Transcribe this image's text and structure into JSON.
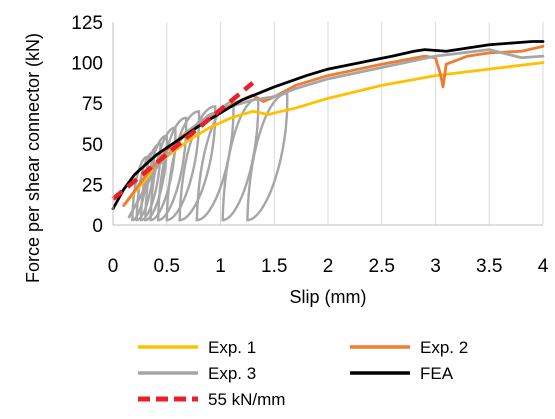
{
  "chart_data": {
    "type": "line",
    "title": "",
    "xlabel": "Slip (mm)",
    "ylabel": "Force per shear connector (kN)",
    "xlim": [
      0,
      4
    ],
    "ylim": [
      0,
      125
    ],
    "xticks": [
      0,
      0.5,
      1,
      1.5,
      2,
      2.5,
      3,
      3.5,
      4
    ],
    "xtick_labels": [
      "0",
      "0.5",
      "1",
      "1.5",
      "2",
      "2.5",
      "3",
      "3.5",
      "4"
    ],
    "yticks": [
      0,
      25,
      50,
      75,
      100,
      125
    ],
    "ytick_labels": [
      "0",
      "25",
      "50",
      "75",
      "100",
      "125"
    ],
    "grid": "vertical",
    "legend_position": "bottom",
    "series": [
      {
        "name": "Exp. 1",
        "color": "#FFC000",
        "dash": false,
        "x": [
          0.1,
          0.3,
          0.5,
          0.7,
          0.9,
          1.1,
          1.3,
          1.45,
          1.5,
          1.7,
          2.0,
          2.5,
          3.0,
          3.5,
          4.0
        ],
        "y": [
          12,
          28,
          42,
          52,
          60,
          66,
          70,
          68,
          69,
          72,
          78,
          86,
          92,
          96,
          100
        ]
      },
      {
        "name": "Exp. 2",
        "color": "#ED7D31",
        "dash": false,
        "x": [
          0.1,
          0.3,
          0.5,
          0.7,
          0.9,
          1.1,
          1.3,
          1.4,
          1.5,
          1.7,
          2.0,
          2.5,
          2.9,
          3.0,
          3.05,
          3.07,
          3.1,
          3.3,
          3.5,
          3.8,
          4.0
        ],
        "y": [
          12,
          30,
          46,
          58,
          67,
          74,
          80,
          76,
          79,
          86,
          92,
          99,
          104,
          103,
          92,
          85,
          99,
          104,
          106,
          107,
          110
        ]
      },
      {
        "name": "Exp. 3",
        "color": "#A6A6A6",
        "dash": false,
        "x": [
          0.15,
          0.4,
          0.7,
          0.9,
          1.1,
          1.3,
          1.5,
          1.7,
          2.0,
          2.5,
          3.0,
          3.5,
          3.8,
          4.0
        ],
        "y": [
          5,
          35,
          58,
          68,
          73,
          77,
          79,
          84,
          90,
          97,
          104,
          108,
          103,
          104
        ]
      },
      {
        "name": "FEA",
        "color": "#000000",
        "dash": false,
        "x": [
          0,
          0.1,
          0.2,
          0.4,
          0.6,
          0.8,
          1.0,
          1.2,
          1.5,
          1.8,
          2.0,
          2.3,
          2.6,
          2.8,
          2.9,
          3.1,
          3.3,
          3.5,
          3.7,
          3.9,
          4.0
        ],
        "y": [
          10,
          22,
          31,
          43,
          52,
          61,
          69,
          77,
          85,
          92,
          96,
          100,
          104,
          107,
          108,
          107,
          109,
          111,
          112,
          113,
          113
        ]
      },
      {
        "name": "55 kN/mm",
        "color": "#E8202A",
        "dash": true,
        "x": [
          0,
          1.3
        ],
        "y": [
          16,
          87.5
        ]
      }
    ],
    "hysteresis_loops": {
      "color": "#A6A6A6",
      "loops": [
        {
          "x0": 0.18,
          "y0": 3,
          "x1": 0.32,
          "y1": 42
        },
        {
          "x0": 0.22,
          "y0": 3,
          "x1": 0.38,
          "y1": 45
        },
        {
          "x0": 0.26,
          "y0": 3,
          "x1": 0.44,
          "y1": 50
        },
        {
          "x0": 0.3,
          "y0": 3,
          "x1": 0.5,
          "y1": 55
        },
        {
          "x0": 0.35,
          "y0": 3,
          "x1": 0.58,
          "y1": 60
        },
        {
          "x0": 0.42,
          "y0": 3,
          "x1": 0.68,
          "y1": 66
        },
        {
          "x0": 0.5,
          "y0": 3,
          "x1": 0.8,
          "y1": 70
        },
        {
          "x0": 0.62,
          "y0": 3,
          "x1": 0.95,
          "y1": 73
        },
        {
          "x0": 0.78,
          "y0": 3,
          "x1": 1.12,
          "y1": 76
        },
        {
          "x0": 1.02,
          "y0": 3,
          "x1": 1.35,
          "y1": 78
        },
        {
          "x0": 1.25,
          "y0": 3,
          "x1": 1.62,
          "y1": 81
        }
      ]
    }
  }
}
